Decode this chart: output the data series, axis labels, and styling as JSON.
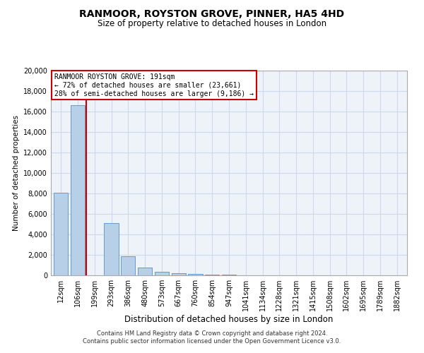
{
  "title": "RANMOOR, ROYSTON GROVE, PINNER, HA5 4HD",
  "subtitle": "Size of property relative to detached houses in London",
  "xlabel": "Distribution of detached houses by size in London",
  "ylabel": "Number of detached properties",
  "footer_line1": "Contains HM Land Registry data © Crown copyright and database right 2024.",
  "footer_line2": "Contains public sector information licensed under the Open Government Licence v3.0.",
  "annotation_line1": "RANMOOR ROYSTON GROVE: 191sqm",
  "annotation_line2": "← 72% of detached houses are smaller (23,661)",
  "annotation_line3": "28% of semi-detached houses are larger (9,186) →",
  "property_size_idx": 2,
  "bar_color": "#b8cfe8",
  "bar_edge_color": "#6699cc",
  "red_line_color": "#cc0000",
  "annotation_box_color": "#ffffff",
  "annotation_box_edge": "#cc0000",
  "categories": [
    "12sqm",
    "106sqm",
    "199sqm",
    "293sqm",
    "386sqm",
    "480sqm",
    "573sqm",
    "667sqm",
    "760sqm",
    "854sqm",
    "947sqm",
    "1041sqm",
    "1134sqm",
    "1228sqm",
    "1321sqm",
    "1415sqm",
    "1508sqm",
    "1602sqm",
    "1695sqm",
    "1789sqm",
    "1882sqm"
  ],
  "values": [
    8050,
    16600,
    0,
    5100,
    1850,
    780,
    370,
    230,
    140,
    90,
    45,
    18,
    8,
    4,
    2,
    1,
    1,
    0,
    0,
    0,
    0
  ],
  "ylim": [
    0,
    20000
  ],
  "yticks": [
    0,
    2000,
    4000,
    6000,
    8000,
    10000,
    12000,
    14000,
    16000,
    18000,
    20000
  ],
  "grid_color": "#ccd8ec",
  "background_color": "#eef2f9",
  "title_fontsize": 10,
  "subtitle_fontsize": 8.5
}
